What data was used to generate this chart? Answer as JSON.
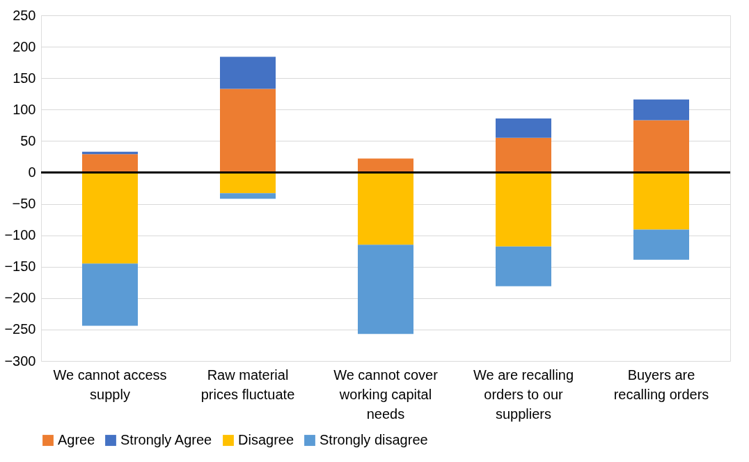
{
  "chart_data": {
    "type": "bar",
    "stacked": true,
    "categories": [
      "We cannot access supply",
      "Raw material prices fluctuate",
      "We cannot cover working capital needs",
      "We are recalling orders to our suppliers",
      "Buyers are recalling orders"
    ],
    "series": [
      {
        "name": "Agree",
        "color": "#ed7d31",
        "values": [
          29,
          133,
          22,
          55,
          83
        ]
      },
      {
        "name": "Strongly Agree",
        "color": "#4472c4",
        "values": [
          4,
          51,
          0,
          31,
          33
        ]
      },
      {
        "name": "Disagree",
        "color": "#ffc000",
        "values": [
          -145,
          -33,
          -115,
          -118,
          -91
        ]
      },
      {
        "name": "Strongly disagree",
        "color": "#5b9bd5",
        "values": [
          -99,
          -9,
          -142,
          -63,
          -48
        ]
      }
    ],
    "ylim": [
      -300,
      250
    ],
    "yticks": [
      -300,
      -250,
      -200,
      -150,
      -100,
      -50,
      0,
      50,
      100,
      150,
      200,
      250
    ],
    "ref_lines": [
      {
        "axis": "y",
        "value": 0,
        "color": "#000000"
      }
    ],
    "grid": "y",
    "legend": "bottom"
  }
}
